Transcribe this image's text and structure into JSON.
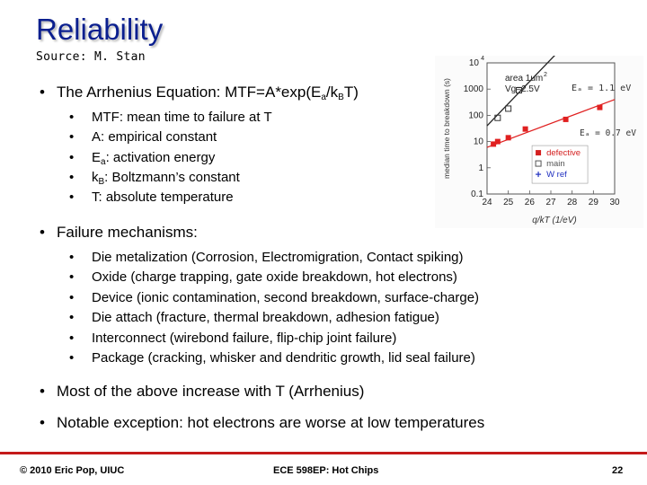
{
  "slide": {
    "title": "Reliability",
    "source": "Source: M. Stan",
    "arrhenius": {
      "bullet": "•",
      "text": "The Arrhenius Equation: MTF=A*exp(E",
      "sub_a": "a",
      "text2": "/k",
      "sub_b": "B",
      "text3": "T)"
    },
    "arrhenius_items": [
      {
        "pre": "MTF: mean time to failure at T"
      },
      {
        "pre": "A: empirical constant"
      },
      {
        "pre": "E",
        "sub": "a",
        "post": ": activation energy"
      },
      {
        "pre": "k",
        "sub": "B",
        "post": ": Boltzmann’s constant"
      },
      {
        "pre": "T: absolute temperature"
      }
    ],
    "failure_heading": "Failure mechanisms:",
    "failure_items": [
      "Die metalization (Corrosion, Electromigration, Contact spiking)",
      "Oxide (charge trapping, gate oxide breakdown, hot electrons)",
      "Device (ionic contamination, second breakdown, surface-charge)",
      "Die attach (fracture, thermal breakdown, adhesion fatigue)",
      "Interconnect (wirebond failure, flip-chip joint failure)",
      "Package (cracking, whisker and dendritic growth, lid seal failure)"
    ],
    "note1": "Most of the above increase with T (Arrhenius)",
    "note2": "Notable exception: hot electrons are worse at low temperatures",
    "sub_bullet": "•"
  },
  "chart_data": {
    "type": "scatter",
    "xlabel": "q/kT (1/eV)",
    "ylabel": "median time to breakdown (s)",
    "xlim": [
      24,
      30
    ],
    "ylim": [
      0.1,
      10000
    ],
    "log_y": true,
    "x_ticks": [
      "24",
      "25",
      "26",
      "27",
      "28",
      "29",
      "30"
    ],
    "y_ticks": [
      {
        "base": "10",
        "exp": "4",
        "value": 10000
      },
      {
        "base": "1000",
        "exp": "",
        "value": 1000
      },
      {
        "base": "100",
        "exp": "",
        "value": 100
      },
      {
        "base": "10",
        "exp": "",
        "value": 10
      },
      {
        "base": "1",
        "exp": "",
        "value": 1
      },
      {
        "base": "0.1",
        "exp": "",
        "value": 0.1
      }
    ],
    "inset_text": [
      "area 1um",
      "2",
      "Vg=2.5V"
    ],
    "annotations": [
      "Eₐ = 1.1 eV",
      "Eₐ = 0.7 eV"
    ],
    "legend": [
      "defective",
      "main",
      "W ref"
    ],
    "legend_colors": [
      "#d42020",
      "#555555",
      "#2030c0"
    ],
    "series": [
      {
        "name": "main",
        "color": "#333333",
        "points": [
          {
            "x": 24.5,
            "y": 80
          },
          {
            "x": 25.0,
            "y": 180
          },
          {
            "x": 25.5,
            "y": 900
          }
        ]
      },
      {
        "name": "defective",
        "color": "#e02020",
        "points": [
          {
            "x": 24.3,
            "y": 8
          },
          {
            "x": 24.5,
            "y": 10
          },
          {
            "x": 25.0,
            "y": 14
          },
          {
            "x": 25.8,
            "y": 30
          },
          {
            "x": 27.7,
            "y": 70
          },
          {
            "x": 29.3,
            "y": 200
          }
        ]
      },
      {
        "name": "W ref",
        "color": "#2030c0",
        "points": []
      }
    ],
    "fits": [
      {
        "name": "main-fit",
        "color": "#222222",
        "x": [
          24.0,
          27.2
        ],
        "y": [
          40,
          20000
        ]
      },
      {
        "name": "defective-fit",
        "color": "#e02020",
        "x": [
          24.0,
          30.0
        ],
        "y": [
          6,
          400
        ]
      }
    ]
  },
  "footer": {
    "left": "© 2010 Eric Pop, UIUC",
    "center": "ECE 598EP: Hot Chips",
    "page": "22"
  }
}
